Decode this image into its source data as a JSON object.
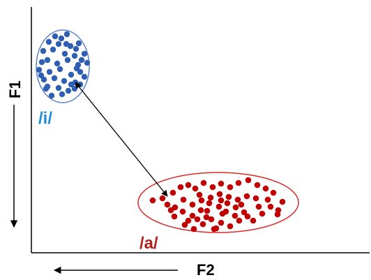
{
  "chart_data": {
    "type": "scatter",
    "title": "",
    "xlabel": "F2",
    "ylabel": "F1",
    "x_direction": "decreasing-left",
    "y_direction": "increasing-down",
    "grid": false,
    "legend": "none",
    "series": [
      {
        "name": "/i/",
        "color": "#2F5FB3",
        "ellipse_color": "#5B82C6",
        "label_color": "#1E8FD6",
        "points": [
          [
            79,
            52
          ],
          [
            88,
            55
          ],
          [
            96,
            49
          ],
          [
            70,
            60
          ],
          [
            84,
            63
          ],
          [
            101,
            66
          ],
          [
            113,
            62
          ],
          [
            109,
            70
          ],
          [
            62,
            73
          ],
          [
            76,
            71
          ],
          [
            93,
            77
          ],
          [
            107,
            80
          ],
          [
            121,
            77
          ],
          [
            117,
            86
          ],
          [
            60,
            89
          ],
          [
            68,
            86
          ],
          [
            82,
            91
          ],
          [
            97,
            86
          ],
          [
            112,
            93
          ],
          [
            125,
            90
          ],
          [
            56,
            100
          ],
          [
            71,
            103
          ],
          [
            86,
            99
          ],
          [
            102,
            107
          ],
          [
            115,
            103
          ],
          [
            63,
            114
          ],
          [
            78,
            112
          ],
          [
            92,
            116
          ],
          [
            108,
            118
          ],
          [
            121,
            110
          ],
          [
            68,
            124
          ],
          [
            84,
            126
          ],
          [
            98,
            130
          ],
          [
            107,
            127
          ],
          [
            74,
            137
          ],
          [
            89,
            135
          ],
          [
            102,
            121
          ],
          [
            115,
            121
          ],
          [
            59,
            108
          ],
          [
            95,
            63
          ],
          [
            110,
            98
          ],
          [
            66,
            127
          ]
        ]
      },
      {
        "name": "/a/",
        "color": "#C00000",
        "ellipse_color": "#D92B2B",
        "label_color": "#B22020",
        "points": [
          [
            219,
            287
          ],
          [
            240,
            293
          ],
          [
            248,
            276
          ],
          [
            259,
            268
          ],
          [
            270,
            265
          ],
          [
            280,
            270
          ],
          [
            292,
            262
          ],
          [
            305,
            268
          ],
          [
            317,
            263
          ],
          [
            330,
            268
          ],
          [
            342,
            262
          ],
          [
            356,
            258
          ],
          [
            369,
            265
          ],
          [
            381,
            270
          ],
          [
            392,
            276
          ],
          [
            405,
            289
          ],
          [
            399,
            301
          ],
          [
            388,
            296
          ],
          [
            376,
            306
          ],
          [
            363,
            316
          ],
          [
            350,
            304
          ],
          [
            338,
            297
          ],
          [
            326,
            291
          ],
          [
            314,
            296
          ],
          [
            300,
            291
          ],
          [
            288,
            301
          ],
          [
            276,
            309
          ],
          [
            262,
            303
          ],
          [
            250,
            310
          ],
          [
            265,
            322
          ],
          [
            278,
            328
          ],
          [
            291,
            321
          ],
          [
            303,
            314
          ],
          [
            317,
            319
          ],
          [
            330,
            324
          ],
          [
            343,
            316
          ],
          [
            355,
            310
          ],
          [
            367,
            284
          ],
          [
            354,
            281
          ],
          [
            341,
            286
          ],
          [
            328,
            282
          ],
          [
            315,
            278
          ],
          [
            302,
            283
          ],
          [
            289,
            287
          ],
          [
            276,
            293
          ],
          [
            263,
            286
          ],
          [
            251,
            297
          ],
          [
            307,
            328
          ],
          [
            319,
            306
          ],
          [
            296,
            311
          ],
          [
            283,
            314
          ],
          [
            270,
            316
          ],
          [
            245,
            301
          ],
          [
            233,
            284
          ],
          [
            371,
            296
          ],
          [
            384,
            286
          ],
          [
            398,
            307
          ],
          [
            337,
            309
          ],
          [
            324,
            303
          ],
          [
            310,
            327
          ],
          [
            297,
            302
          ],
          [
            286,
            279
          ],
          [
            317,
            287
          ],
          [
            346,
            293
          ]
        ]
      }
    ],
    "annotations": [
      {
        "type": "double-arrow",
        "from": [
          108,
          118
        ],
        "to": [
          240,
          281
        ]
      }
    ]
  }
}
